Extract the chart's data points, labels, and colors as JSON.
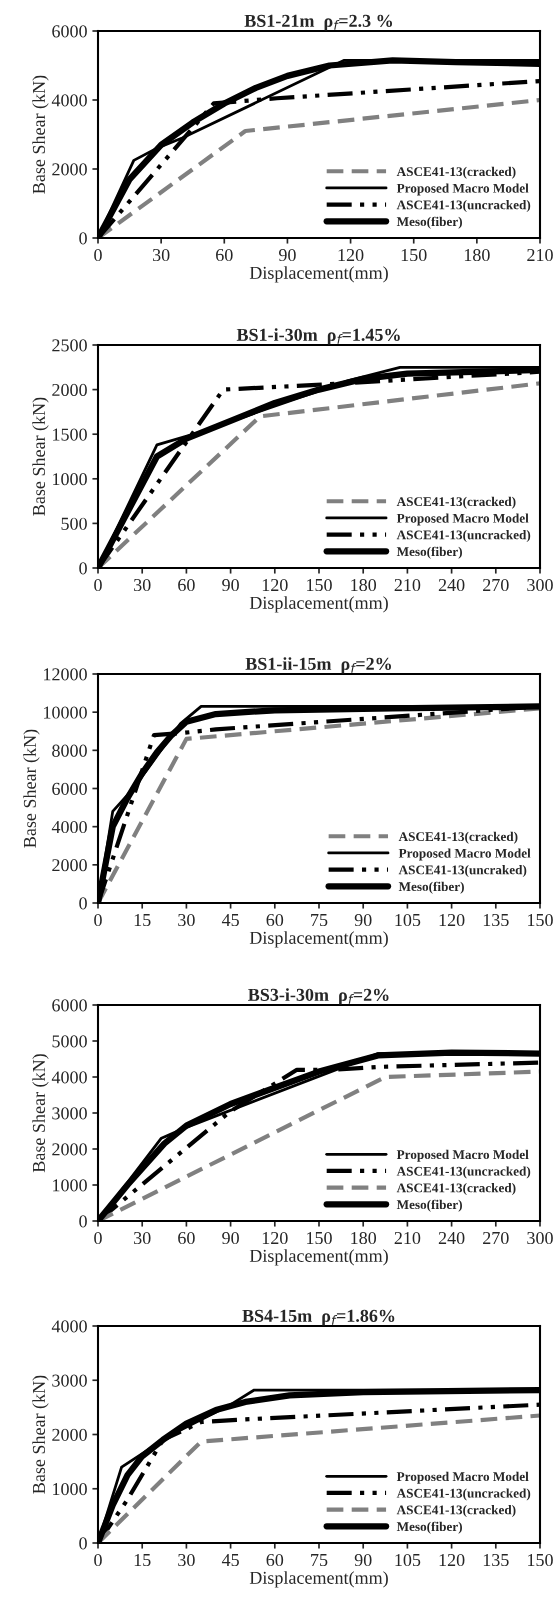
{
  "chart_data": [
    {
      "type": "line",
      "title": "BS1-21m  ρ$_{f}$=2.3 %",
      "xlabel": "Displacement(mm)",
      "ylabel": "Base Shear (kN)",
      "xlim": [
        0,
        210
      ],
      "xticks": [
        0,
        30,
        60,
        90,
        120,
        150,
        180,
        210
      ],
      "ylim": [
        0,
        6000
      ],
      "yticks": [
        0,
        2000,
        4000,
        6000
      ],
      "grid": false,
      "legend": "bottom right",
      "series": [
        {
          "name": "ASCE41-13(cracked)",
          "color": "#808080",
          "line_style": "dashed",
          "x": [
            0,
            70,
            210
          ],
          "values": [
            0,
            3100,
            4000
          ]
        },
        {
          "name": "Proposed Macro Model",
          "color": "#000000",
          "line_style": "solid",
          "x": [
            0,
            17,
            28,
            40,
            117,
            210
          ],
          "values": [
            0,
            2250,
            2600,
            2900,
            5150,
            5150
          ]
        },
        {
          "name": "ASCE41-13(uncracked)",
          "color": "#000000",
          "line_style": "dashdot",
          "x": [
            0,
            55,
            85,
            210
          ],
          "values": [
            0,
            3900,
            4050,
            4550
          ]
        },
        {
          "name": "Meso(fiber)",
          "color": "#000000",
          "line_style": "solid",
          "x": [
            0,
            15,
            30,
            45,
            60,
            75,
            90,
            110,
            140,
            170,
            210
          ],
          "values": [
            0,
            1700,
            2700,
            3350,
            3900,
            4350,
            4700,
            5000,
            5150,
            5100,
            5050
          ]
        }
      ]
    },
    {
      "type": "line",
      "title": "BS1-i-30m  ρ$_{f}$=1.45%",
      "xlabel": "Displacement(mm)",
      "ylabel": "Base Shear (kN)",
      "xlim": [
        0,
        300
      ],
      "xticks": [
        0,
        30,
        60,
        90,
        120,
        150,
        180,
        210,
        240,
        270,
        300
      ],
      "ylim": [
        0,
        2500
      ],
      "yticks": [
        0,
        500,
        1000,
        1500,
        2000,
        2500
      ],
      "grid": false,
      "legend": "bottom right",
      "series": [
        {
          "name": "ASCE41-13(cracked)",
          "color": "#808080",
          "line_style": "dashed",
          "x": [
            0,
            110,
            300
          ],
          "values": [
            0,
            1700,
            2070
          ]
        },
        {
          "name": "Proposed Macro Model",
          "color": "#000000",
          "line_style": "solid",
          "x": [
            0,
            40,
            65,
            100,
            170,
            205,
            300
          ],
          "values": [
            0,
            1380,
            1500,
            1700,
            2100,
            2250,
            2250
          ]
        },
        {
          "name": "ASCE41-13(uncracked)",
          "color": "#000000",
          "line_style": "dashdot",
          "x": [
            0,
            85,
            145,
            300
          ],
          "values": [
            0,
            2000,
            2050,
            2200
          ]
        },
        {
          "name": "Meso(fiber)",
          "color": "#000000",
          "line_style": "solid",
          "x": [
            0,
            40,
            60,
            90,
            120,
            150,
            180,
            210,
            300
          ],
          "values": [
            0,
            1250,
            1450,
            1650,
            1850,
            2000,
            2120,
            2180,
            2220
          ]
        }
      ]
    },
    {
      "type": "line",
      "title": "BS1-ii-15m  ρ$_{f}$=2%",
      "xlabel": "Displacement(mm)",
      "ylabel": "Base Shear (kN)",
      "xlim": [
        0,
        150
      ],
      "xticks": [
        0,
        15,
        30,
        45,
        60,
        75,
        90,
        105,
        120,
        135,
        150
      ],
      "ylim": [
        0,
        12000
      ],
      "yticks": [
        0,
        2000,
        4000,
        6000,
        8000,
        10000,
        12000
      ],
      "grid": false,
      "legend": "bottom right",
      "series": [
        {
          "name": "ASCE41-13(cracked)",
          "color": "#808080",
          "line_style": "dashed",
          "x": [
            0,
            30,
            150
          ],
          "values": [
            0,
            8600,
            10200
          ]
        },
        {
          "name": "Proposed Macro Model",
          "color": "#000000",
          "line_style": "solid",
          "x": [
            0,
            5,
            12,
            20,
            28,
            35,
            150
          ],
          "values": [
            0,
            4800,
            6000,
            7700,
            9400,
            10300,
            10300
          ]
        },
        {
          "name": "ASCE41-13(uncraked)",
          "color": "#000000",
          "line_style": "dashdot",
          "x": [
            0,
            19,
            28,
            40,
            150
          ],
          "values": [
            0,
            8800,
            8900,
            9100,
            10300
          ]
        },
        {
          "name": "Meso(fiber)",
          "color": "#000000",
          "line_style": "solid",
          "x": [
            0,
            5,
            10,
            15,
            20,
            25,
            30,
            40,
            60,
            100,
            150
          ],
          "values": [
            0,
            4000,
            5500,
            6800,
            7900,
            8800,
            9500,
            9900,
            10100,
            10200,
            10300
          ]
        }
      ]
    },
    {
      "type": "line",
      "title": "BS3-i-30m  ρ$_{f}$=2%",
      "xlabel": "Displacement(mm)",
      "ylabel": "Base Shear (kN)",
      "xlim": [
        0,
        300
      ],
      "xticks": [
        0,
        30,
        60,
        90,
        120,
        150,
        180,
        210,
        240,
        270,
        300
      ],
      "ylim": [
        0,
        6000
      ],
      "yticks": [
        0,
        1000,
        2000,
        3000,
        4000,
        5000,
        6000
      ],
      "grid": false,
      "legend": "bottom right",
      "series": [
        {
          "name": "Proposed Macro Model",
          "color": "#000000",
          "line_style": "solid",
          "x": [
            0,
            43,
            60,
            190,
            300
          ],
          "values": [
            0,
            2300,
            2600,
            4650,
            4650
          ]
        },
        {
          "name": "ASCE41-13(uncracked)",
          "color": "#000000",
          "line_style": "dashdot",
          "x": [
            0,
            90,
            135,
            160,
            190,
            300
          ],
          "values": [
            0,
            3050,
            4200,
            4200,
            4280,
            4400
          ]
        },
        {
          "name": "ASCE41-13(cracked)",
          "color": "#808080",
          "line_style": "dashed",
          "x": [
            0,
            195,
            300
          ],
          "values": [
            0,
            4000,
            4150
          ]
        },
        {
          "name": "Meso(fiber)",
          "color": "#000000",
          "line_style": "solid",
          "x": [
            0,
            20,
            45,
            60,
            90,
            120,
            150,
            190,
            240,
            300
          ],
          "values": [
            0,
            1000,
            2150,
            2650,
            3250,
            3700,
            4150,
            4600,
            4680,
            4650
          ]
        }
      ]
    },
    {
      "type": "line",
      "title": "BS4-15m  ρ$_{f}$=1.86%",
      "xlabel": "Displacement(mm)",
      "ylabel": "Base Shear (kN)",
      "xlim": [
        0,
        150
      ],
      "xticks": [
        0,
        15,
        30,
        45,
        60,
        75,
        90,
        105,
        120,
        135,
        150
      ],
      "ylim": [
        0,
        4000
      ],
      "yticks": [
        0,
        1000,
        2000,
        3000,
        4000
      ],
      "grid": false,
      "legend": "bottom right",
      "series": [
        {
          "name": "Proposed Macro Model",
          "color": "#000000",
          "line_style": "solid",
          "x": [
            0,
            8,
            25,
            45,
            53,
            150
          ],
          "values": [
            0,
            1400,
            2000,
            2550,
            2820,
            2820
          ]
        },
        {
          "name": "ASCE41-13(uncracked)",
          "color": "#000000",
          "line_style": "dashdot",
          "x": [
            0,
            10,
            22,
            35,
            47,
            150
          ],
          "values": [
            0,
            800,
            1900,
            2230,
            2270,
            2550
          ]
        },
        {
          "name": "ASCE41-13(cracked)",
          "color": "#808080",
          "line_style": "dashed",
          "x": [
            0,
            35,
            150
          ],
          "values": [
            0,
            1870,
            2350
          ]
        },
        {
          "name": "Meso(fiber)",
          "color": "#000000",
          "line_style": "solid",
          "x": [
            0,
            5,
            10,
            15,
            22,
            30,
            40,
            50,
            65,
            90,
            150
          ],
          "values": [
            0,
            700,
            1250,
            1600,
            1900,
            2200,
            2450,
            2600,
            2720,
            2780,
            2820
          ]
        }
      ]
    }
  ]
}
